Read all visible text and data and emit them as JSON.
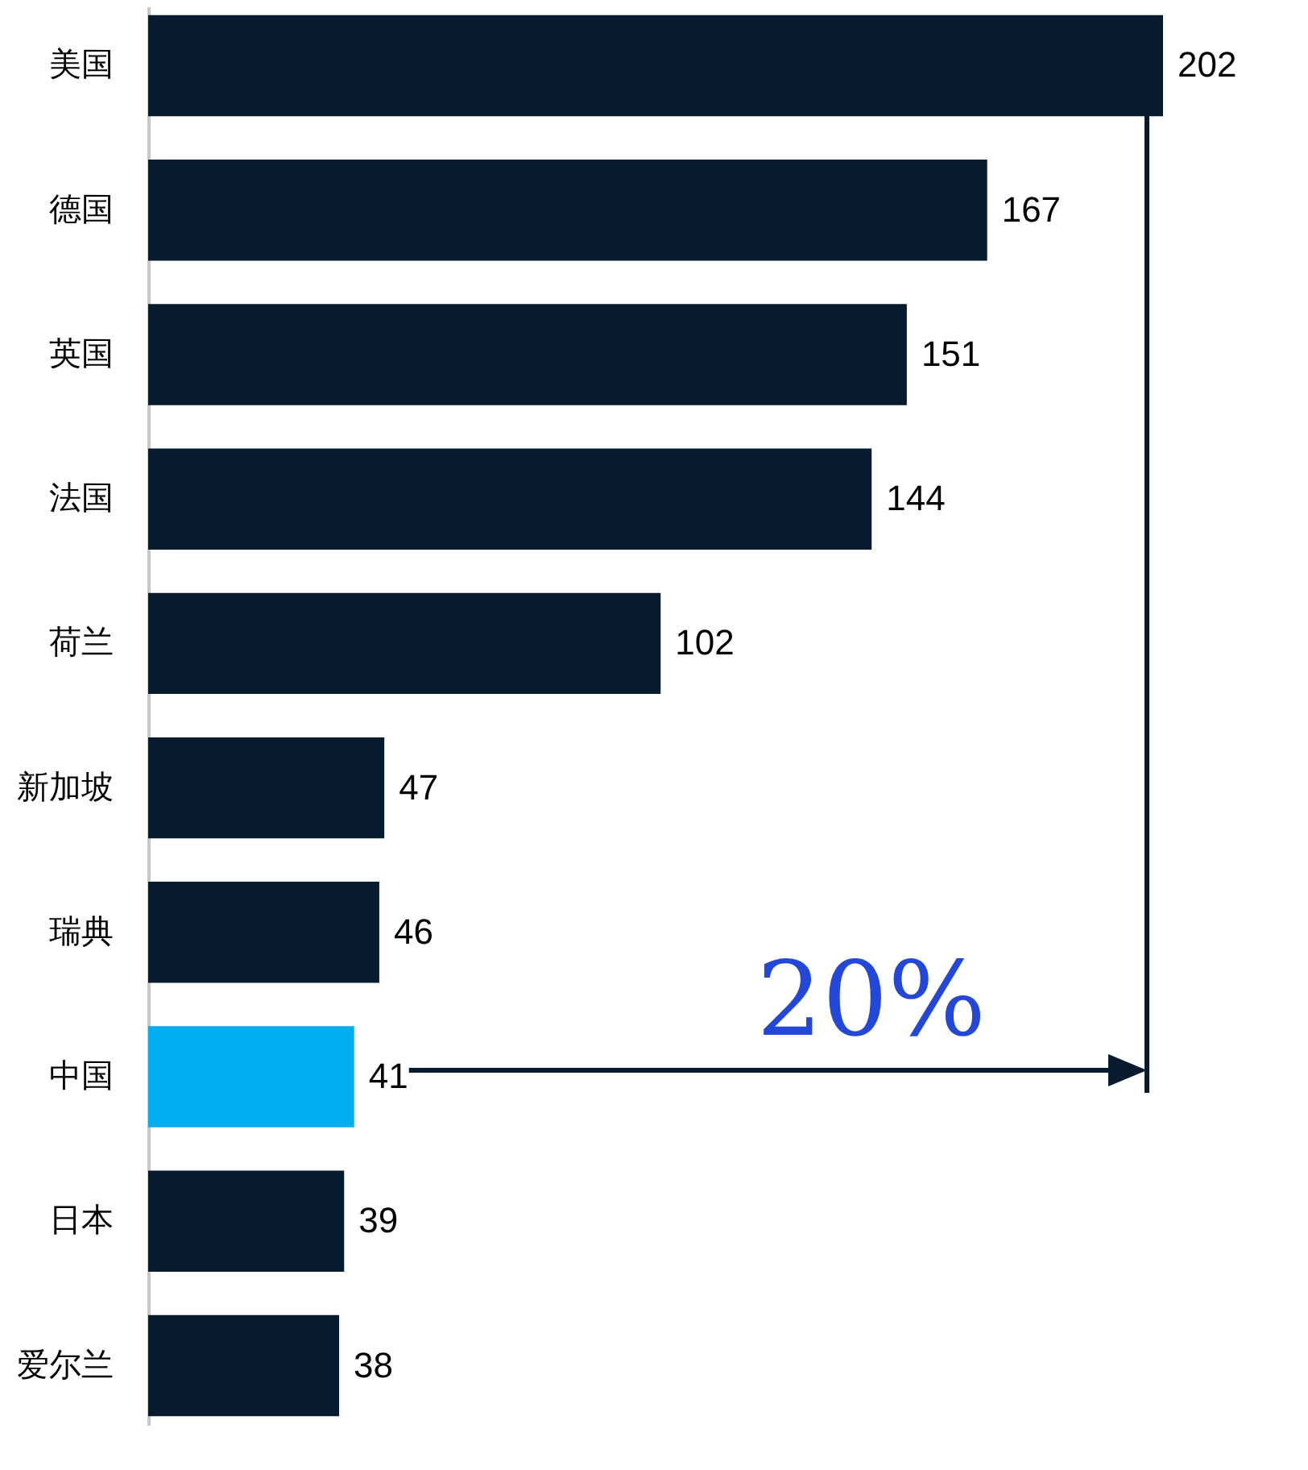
{
  "chart_data": {
    "type": "bar",
    "orientation": "horizontal",
    "data_labels": true,
    "categories": [
      "美国",
      "德国",
      "英国",
      "法国",
      "荷兰",
      "新加坡",
      "瑞典",
      "中国",
      "日本",
      "爱尔兰"
    ],
    "values": [
      202,
      167,
      151,
      144,
      102,
      47,
      46,
      41,
      39,
      38
    ],
    "colors": [
      "#061c2e",
      "#061c2e",
      "#061c2e",
      "#061c2e",
      "#061c2e",
      "#061c2e",
      "#061c2e",
      "#00aeef",
      "#061c2e",
      "#061c2e"
    ],
    "annotations": [
      "20%"
    ]
  }
}
